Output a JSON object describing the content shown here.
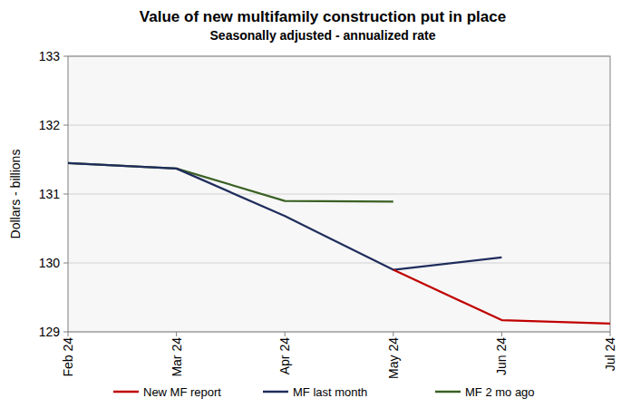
{
  "chart_data": {
    "type": "line",
    "title": "Value of new multifamily  construction put in place",
    "subtitle": "Seasonally adjusted - annualized rate",
    "y_label": "Dollars - billions",
    "categories": [
      "Feb 24",
      "Mar 24",
      "Apr 24",
      "May 24",
      "Jun 24",
      "Jul 24"
    ],
    "series": [
      {
        "name": "New MF report",
        "color": "#c00000",
        "values": [
          null,
          null,
          null,
          129.9,
          129.17,
          129.12
        ]
      },
      {
        "name": "MF last month",
        "color": "#1f2d5c",
        "values": [
          131.45,
          131.37,
          130.68,
          129.9,
          130.08,
          null
        ]
      },
      {
        "name": "MF 2 mo ago",
        "color": "#3a6123",
        "values": [
          131.45,
          131.37,
          130.9,
          130.89,
          null,
          null
        ]
      }
    ],
    "ylim": [
      129,
      133
    ],
    "yticks": [
      129,
      130,
      131,
      132,
      133
    ],
    "grid": true,
    "legend": "bottom"
  }
}
